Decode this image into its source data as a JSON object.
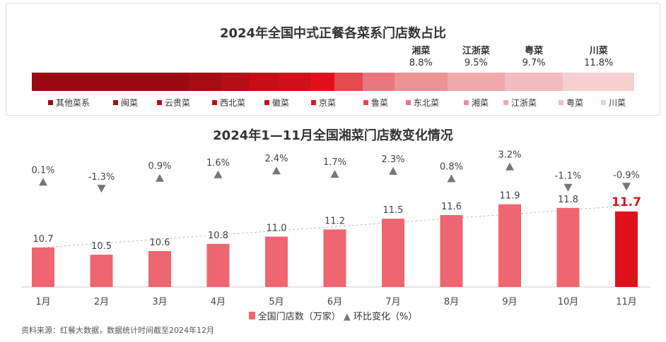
{
  "chart_data": [
    {
      "type": "bar",
      "subtype": "stacked-share",
      "title": "2024年全国中式正餐各菜系门店数占比",
      "categories": [
        "其他菜系",
        "闽菜",
        "云贵菜",
        "西北菜",
        "徽菜",
        "京菜",
        "鲁菜",
        "东北菜",
        "湘菜",
        "江浙菜",
        "粤菜",
        "川菜"
      ],
      "values": [
        26.0,
        5.5,
        4.5,
        5.0,
        5.2,
        4.0,
        4.7,
        5.3,
        8.8,
        9.5,
        9.7,
        11.8
      ],
      "labels": [
        {
          "name": "湘菜",
          "value": "8.8%"
        },
        {
          "name": "江浙菜",
          "value": "9.5%"
        },
        {
          "name": "粤菜",
          "value": "9.7%"
        },
        {
          "name": "川菜",
          "value": "11.8%"
        }
      ],
      "colors": [
        "#9b0a12",
        "#a50c14",
        "#b50e16",
        "#c40f18",
        "#d0101a",
        "#e0111c",
        "#e54a4f",
        "#e8787b",
        "#ec9396",
        "#f0a9ab",
        "#f3bcbe",
        "#f6cfd0"
      ]
    },
    {
      "type": "bar",
      "title": "2024年1—11月全国湘菜门店数变化情况",
      "categories": [
        "1月",
        "2月",
        "3月",
        "4月",
        "5月",
        "6月",
        "7月",
        "8月",
        "9月",
        "10月",
        "11月"
      ],
      "series": [
        {
          "name": "全国门店数（万家）",
          "values": [
            10.7,
            10.5,
            10.6,
            10.8,
            11.0,
            11.2,
            11.5,
            11.6,
            11.9,
            11.8,
            11.7
          ],
          "labels": [
            "10.7",
            "10.5",
            "10.6",
            "10.8",
            "11.0",
            "11.2",
            "11.5",
            "11.6",
            "11.9",
            "11.8",
            "11.7"
          ]
        },
        {
          "name": "环比变化（%）",
          "values": [
            0.1,
            -1.3,
            0.9,
            1.6,
            2.4,
            1.7,
            2.3,
            0.8,
            3.2,
            -1.1,
            -0.9
          ],
          "labels": [
            "0.1%",
            "-1.3%",
            "0.9%",
            "1.6%",
            "2.4%",
            "1.7%",
            "2.3%",
            "0.8%",
            "3.2%",
            "-1.1%",
            "-0.9%"
          ]
        }
      ],
      "ylim": [
        9.6,
        12.2
      ],
      "bar_color": "#ee6670",
      "highlight_color": "#e0101c"
    }
  ],
  "source": "资料来源：红餐大数据，数据统计时间截至2024年12月"
}
